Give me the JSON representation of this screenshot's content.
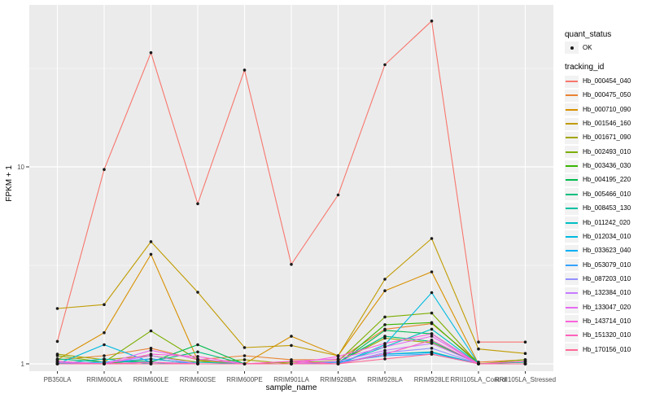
{
  "figure": {
    "panel_background": "#EBEBEB",
    "plot_background": "#FFFFFF",
    "gridline_color": "#FFFFFF",
    "point_color": "#1A1A1A",
    "tick_mark_color": "#333333",
    "axis_text_color": "#4D4D4D",
    "legend_key_background": "#F2F2F2"
  },
  "axes": {
    "x_title": "sample_name",
    "y_title": "FPKM + 1",
    "y_tick_labels": [
      "1",
      "10"
    ]
  },
  "legend": {
    "quant_status": {
      "title": "quant_status",
      "items": [
        {
          "label": "OK",
          "symbol": "black-point"
        }
      ]
    },
    "tracking_id_title": "tracking_id"
  },
  "chart_data": {
    "type": "line",
    "title": "",
    "xlabel": "sample_name",
    "ylabel": "FPKM + 1",
    "y_scale": "log10",
    "ylim": [
      0.93,
      68
    ],
    "y_major_ticks": [
      1,
      10
    ],
    "y_minor_gridlines": [
      3.162,
      31.623
    ],
    "grid": true,
    "legend_position": "right",
    "marker": "black point (quant_status = OK)",
    "categories": [
      "PB350LA",
      "RRIM600LA",
      "RRIM600LE",
      "RRIM600SE",
      "RRIM600PE",
      "RRIM901LA",
      "RRIM928BA",
      "RRIM928LA",
      "RRIM928LE",
      "RRII105LA_Control",
      "RRII105LA_Stressed"
    ],
    "series": [
      {
        "name": "Hb_000454_040",
        "color": "#F8766D",
        "values": [
          1.3,
          9.7,
          38.0,
          6.5,
          31.0,
          3.2,
          7.2,
          33.0,
          55.0,
          1.29,
          1.29
        ]
      },
      {
        "name": "Hb_000475_050",
        "color": "#EA8331",
        "values": [
          1.05,
          1.1,
          1.2,
          1.05,
          1.1,
          1.05,
          1.05,
          1.5,
          1.6,
          1.02,
          1.05
        ]
      },
      {
        "name": "Hb_000710_090",
        "color": "#D89000",
        "values": [
          1.05,
          1.44,
          3.6,
          1.04,
          1.0,
          1.38,
          1.1,
          2.35,
          2.93,
          1.0,
          1.0
        ]
      },
      {
        "name": "Hb_001546_160",
        "color": "#C09B00",
        "values": [
          1.91,
          2.0,
          4.17,
          2.31,
          1.21,
          1.24,
          1.1,
          2.69,
          4.33,
          1.19,
          1.13
        ]
      },
      {
        "name": "Hb_001671_090",
        "color": "#A3A500",
        "values": [
          1.12,
          1.05,
          1.1,
          1.02,
          1.05,
          1.0,
          1.02,
          1.35,
          1.28,
          1.0,
          1.03
        ]
      },
      {
        "name": "Hb_002493_010",
        "color": "#7CAE00",
        "values": [
          1.1,
          1.02,
          1.47,
          1.05,
          1.0,
          1.02,
          1.03,
          1.73,
          1.81,
          1.0,
          1.05
        ]
      },
      {
        "name": "Hb_003436_030",
        "color": "#39B600",
        "values": [
          1.02,
          1.0,
          1.06,
          1.0,
          1.0,
          1.0,
          1.0,
          1.58,
          1.62,
          1.0,
          1.0
        ]
      },
      {
        "name": "Hb_004195_220",
        "color": "#00BB4E",
        "values": [
          1.03,
          1.0,
          1.02,
          1.25,
          1.0,
          1.0,
          1.0,
          1.48,
          1.42,
          1.0,
          1.0
        ]
      },
      {
        "name": "Hb_005466_010",
        "color": "#00BF7D",
        "values": [
          1.06,
          1.02,
          1.03,
          1.15,
          1.0,
          1.0,
          1.02,
          1.38,
          1.3,
          1.0,
          1.02
        ]
      },
      {
        "name": "Hb_008453_130",
        "color": "#00C1A3",
        "values": [
          1.0,
          1.0,
          1.0,
          1.0,
          1.0,
          1.0,
          1.0,
          1.12,
          1.15,
          1.0,
          1.0
        ]
      },
      {
        "name": "Hb_011242_020",
        "color": "#00BFC4",
        "values": [
          1.0,
          1.06,
          1.0,
          1.02,
          1.0,
          1.0,
          1.0,
          1.22,
          1.5,
          1.0,
          1.0
        ]
      },
      {
        "name": "Hb_012034_010",
        "color": "#00BAE0",
        "values": [
          1.0,
          1.25,
          1.02,
          1.0,
          1.0,
          1.0,
          1.0,
          1.25,
          2.3,
          1.0,
          1.0
        ]
      },
      {
        "name": "Hb_033623_040",
        "color": "#00B0F6",
        "values": [
          1.0,
          1.0,
          1.0,
          1.0,
          1.0,
          1.0,
          1.0,
          1.12,
          1.14,
          1.0,
          1.0
        ]
      },
      {
        "name": "Hb_053079_010",
        "color": "#35A2FF",
        "values": [
          1.0,
          1.02,
          1.06,
          1.0,
          1.0,
          1.0,
          1.02,
          1.1,
          1.12,
          1.0,
          1.0
        ]
      },
      {
        "name": "Hb_087203_010",
        "color": "#9590FF",
        "values": [
          1.0,
          1.0,
          1.02,
          1.0,
          1.0,
          1.0,
          1.0,
          1.14,
          1.2,
          1.0,
          1.0
        ]
      },
      {
        "name": "Hb_132384_010",
        "color": "#C77CFF",
        "values": [
          1.0,
          1.0,
          1.1,
          1.0,
          1.0,
          1.0,
          1.03,
          1.17,
          1.27,
          1.0,
          1.0
        ]
      },
      {
        "name": "Hb_133047_020",
        "color": "#E76BF3",
        "values": [
          1.02,
          1.0,
          1.17,
          1.06,
          1.0,
          1.03,
          1.06,
          1.22,
          1.38,
          1.0,
          1.0
        ]
      },
      {
        "name": "Hb_143714_010",
        "color": "#FA62DB",
        "values": [
          1.03,
          1.0,
          1.12,
          1.09,
          1.0,
          1.0,
          1.09,
          1.27,
          1.42,
          1.0,
          1.03
        ]
      },
      {
        "name": "Hb_151320_010",
        "color": "#FF62BC",
        "values": [
          1.0,
          1.0,
          1.02,
          1.0,
          1.0,
          1.03,
          1.0,
          1.12,
          1.32,
          1.0,
          1.0
        ]
      },
      {
        "name": "Hb_170156_010",
        "color": "#FF6A98",
        "values": [
          1.0,
          1.0,
          1.0,
          1.0,
          1.0,
          1.0,
          1.0,
          1.06,
          1.12,
          1.0,
          1.0
        ]
      }
    ]
  }
}
